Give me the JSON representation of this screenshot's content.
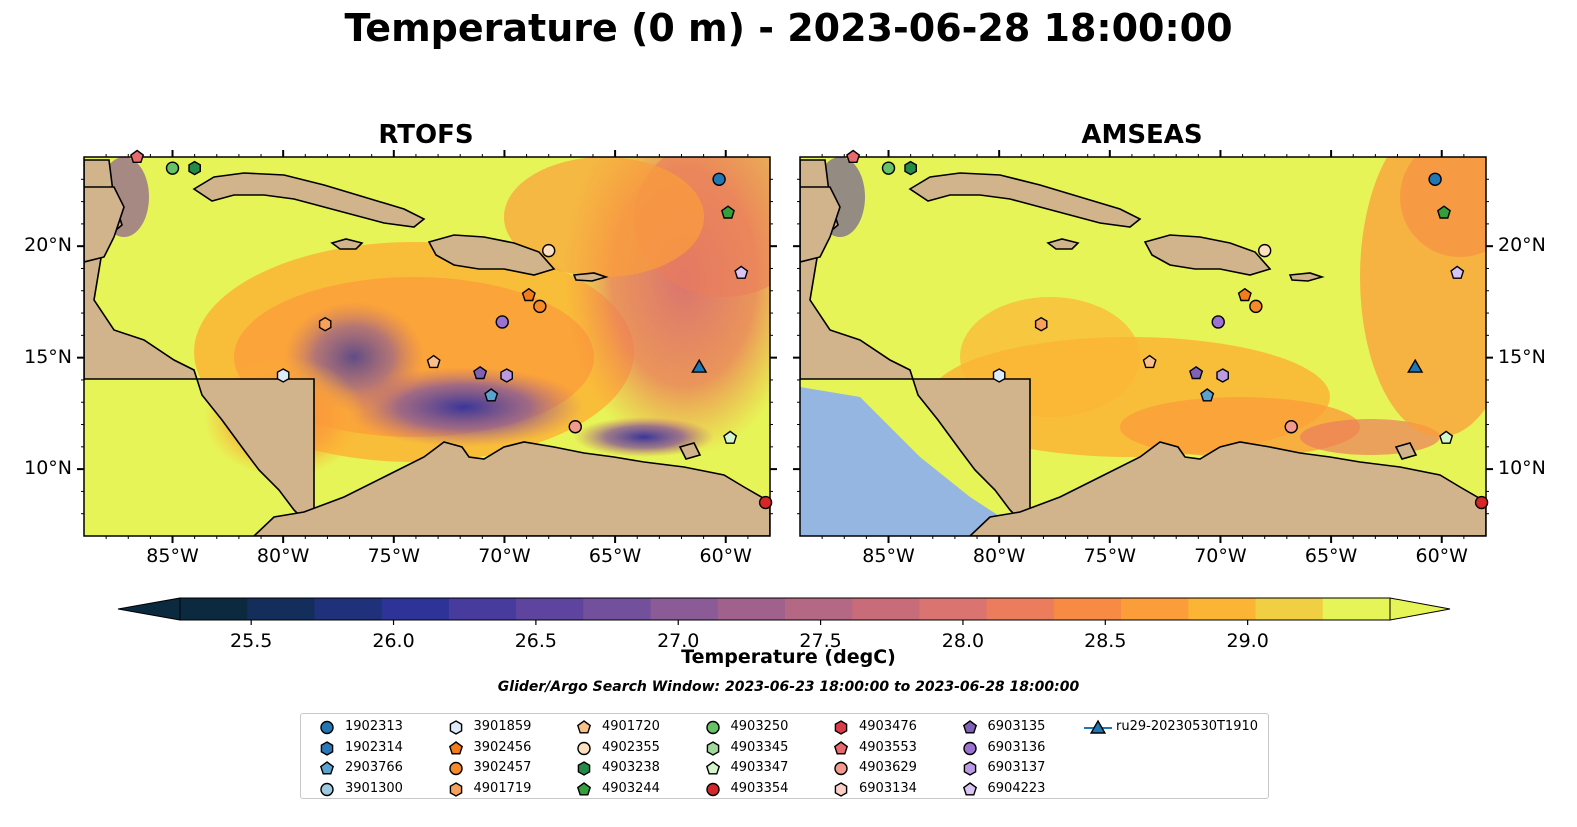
{
  "title": "Temperature (0 m) - 2023-06-28 18:00:00",
  "panels": [
    {
      "title": "RTOFS"
    },
    {
      "title": "AMSEAS"
    }
  ],
  "axes": {
    "lon_ticks": [
      "85°W",
      "80°W",
      "75°W",
      "70°W",
      "65°W",
      "60°W"
    ],
    "lat_ticks": [
      "20°N",
      "15°N",
      "10°N"
    ],
    "lon_range": [
      -89,
      -58
    ],
    "lat_range": [
      7,
      24
    ]
  },
  "colorbar": {
    "label": "Temperature (degC)",
    "ticks": [
      "25.5",
      "26.0",
      "26.5",
      "27.0",
      "27.5",
      "28.0",
      "28.5",
      "29.0"
    ],
    "range": [
      25.25,
      29.5
    ],
    "colors": [
      "#0b2a40",
      "#142e5c",
      "#1f317a",
      "#2e3497",
      "#473b9e",
      "#5e449e",
      "#73509c",
      "#8a5b96",
      "#a0628c",
      "#b56883",
      "#c86c79",
      "#d97470",
      "#eb7d5c",
      "#f78b44",
      "#fb9e3a",
      "#fcb434",
      "#f1cf42",
      "#e6f457"
    ]
  },
  "search_window": "Glider/Argo Search Window: 2023-06-23 18:00:00 to 2023-06-28 18:00:00",
  "legend": [
    {
      "label": "1902313",
      "marker": "circle",
      "color": "#1f77b4"
    },
    {
      "label": "1902314",
      "marker": "hexagon",
      "color": "#2b78b8"
    },
    {
      "label": "2903766",
      "marker": "pentagon",
      "color": "#5aa3d0"
    },
    {
      "label": "3901300",
      "marker": "circle",
      "color": "#9ecae1"
    },
    {
      "label": "3901859",
      "marker": "hexagon",
      "color": "#dcebf7"
    },
    {
      "label": "3902456",
      "marker": "pentagon",
      "color": "#f27b1c"
    },
    {
      "label": "3902457",
      "marker": "circle",
      "color": "#f58a2b"
    },
    {
      "label": "4901719",
      "marker": "hexagon",
      "color": "#f7a05b"
    },
    {
      "label": "4901720",
      "marker": "pentagon",
      "color": "#fbbf8a"
    },
    {
      "label": "4902355",
      "marker": "circle",
      "color": "#fde0c0"
    },
    {
      "label": "4903238",
      "marker": "hexagon",
      "color": "#238b45"
    },
    {
      "label": "4903244",
      "marker": "pentagon",
      "color": "#33a03c"
    },
    {
      "label": "4903250",
      "marker": "circle",
      "color": "#66c266"
    },
    {
      "label": "4903345",
      "marker": "hexagon",
      "color": "#a1d99b"
    },
    {
      "label": "4903347",
      "marker": "pentagon",
      "color": "#d5f5cc"
    },
    {
      "label": "4903354",
      "marker": "circle",
      "color": "#d62728"
    },
    {
      "label": "4903476",
      "marker": "hexagon",
      "color": "#dc3b4a"
    },
    {
      "label": "4903553",
      "marker": "pentagon",
      "color": "#e86a6f"
    },
    {
      "label": "4903629",
      "marker": "circle",
      "color": "#f39a8e"
    },
    {
      "label": "6903134",
      "marker": "hexagon",
      "color": "#fcd0c8"
    },
    {
      "label": "6903135",
      "marker": "pentagon",
      "color": "#8061b8"
    },
    {
      "label": "6903136",
      "marker": "circle",
      "color": "#9b72d0"
    },
    {
      "label": "6903137",
      "marker": "hexagon",
      "color": "#b99ae3"
    },
    {
      "label": "6904223",
      "marker": "pentagon",
      "color": "#d8c4f5"
    },
    {
      "label": "ru29-20230530T1910",
      "marker": "triangle-line",
      "color": "#1f77b4"
    }
  ],
  "floats": [
    {
      "id": "1902313",
      "lon": -60.3,
      "lat": 23.0
    },
    {
      "id": "4903244",
      "lon": -59.9,
      "lat": 21.5
    },
    {
      "id": "6904223",
      "lon": -59.3,
      "lat": 18.8
    },
    {
      "id": "4902355",
      "lon": -68.0,
      "lat": 19.8
    },
    {
      "id": "3902456",
      "lon": -68.9,
      "lat": 17.8
    },
    {
      "id": "3902457",
      "lon": -68.4,
      "lat": 17.3
    },
    {
      "id": "6903136",
      "lon": -70.1,
      "lat": 16.6
    },
    {
      "id": "4901719",
      "lon": -78.1,
      "lat": 16.5
    },
    {
      "id": "3901859",
      "lon": -80.0,
      "lat": 14.2
    },
    {
      "id": "4901720",
      "lon": -73.2,
      "lat": 14.8
    },
    {
      "id": "6903135",
      "lon": -71.1,
      "lat": 14.3
    },
    {
      "id": "6903137",
      "lon": -69.9,
      "lat": 14.2
    },
    {
      "id": "2903766",
      "lon": -70.6,
      "lat": 13.3
    },
    {
      "id": "4903629",
      "lon": -66.8,
      "lat": 11.9
    },
    {
      "id": "4903347",
      "lon": -59.8,
      "lat": 11.4
    },
    {
      "id": "4903250",
      "lon": -85.0,
      "lat": 23.5
    },
    {
      "id": "4903238",
      "lon": -84.0,
      "lat": 23.5
    },
    {
      "id": "4903553",
      "lon": -86.6,
      "lat": 24.0
    },
    {
      "id": "4903354",
      "lon": -58.2,
      "lat": 8.5
    },
    {
      "id": "ru29-20230530T1910",
      "lon": -61.2,
      "lat": 14.6
    }
  ]
}
